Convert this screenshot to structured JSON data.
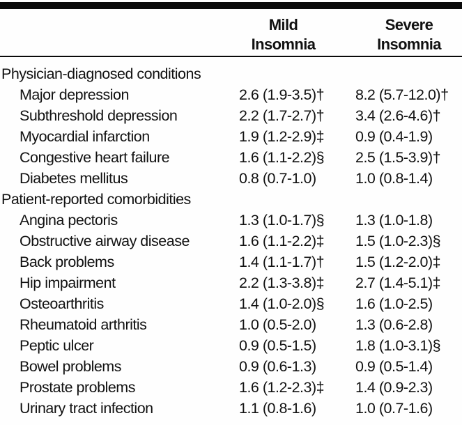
{
  "table": {
    "header": {
      "mild": "Mild\nInsomnia",
      "severe": "Severe\nInsomnia"
    },
    "colors": {
      "rule": "#0a0a0a",
      "text": "#111111",
      "background": "#fefefe"
    },
    "value_format": "odds ratio (95% CI)",
    "footnote_symbols": [
      "†",
      "‡",
      "§"
    ],
    "rows": [
      {
        "type": "section",
        "condition": "Physician-diagnosed conditions",
        "mild": "",
        "severe": ""
      },
      {
        "type": "item",
        "condition": "Major depression",
        "mild": "2.6 (1.9-3.5)†",
        "severe": "8.2 (5.7-12.0)†"
      },
      {
        "type": "item",
        "condition": "Subthreshold depression",
        "mild": "2.2 (1.7-2.7)†",
        "severe": "3.4 (2.6-4.6)†"
      },
      {
        "type": "item",
        "condition": "Myocardial infarction",
        "mild": "1.9 (1.2-2.9)‡",
        "severe": "0.9 (0.4-1.9)"
      },
      {
        "type": "item",
        "condition": "Congestive heart failure",
        "mild": "1.6 (1.1-2.2)§",
        "severe": "2.5 (1.5-3.9)†"
      },
      {
        "type": "item",
        "condition": "Diabetes mellitus",
        "mild": "0.8 (0.7-1.0)",
        "severe": "1.0 (0.8-1.4)"
      },
      {
        "type": "section",
        "condition": "Patient-reported comorbidities",
        "mild": "",
        "severe": ""
      },
      {
        "type": "item",
        "condition": "Angina pectoris",
        "mild": "1.3 (1.0-1.7)§",
        "severe": "1.3 (1.0-1.8)"
      },
      {
        "type": "item",
        "condition": "Obstructive airway disease",
        "mild": "1.6 (1.1-2.2)‡",
        "severe": "1.5 (1.0-2.3)§"
      },
      {
        "type": "item",
        "condition": "Back problems",
        "mild": "1.4 (1.1-1.7)†",
        "severe": "1.5 (1.2-2.0)‡"
      },
      {
        "type": "item",
        "condition": "Hip impairment",
        "mild": "2.2 (1.3-3.8)‡",
        "severe": "2.7 (1.4-5.1)‡"
      },
      {
        "type": "item",
        "condition": "Osteoarthritis",
        "mild": "1.4 (1.0-2.0)§",
        "severe": "1.6 (1.0-2.5)"
      },
      {
        "type": "item",
        "condition": "Rheumatoid arthritis",
        "mild": "1.0 (0.5-2.0)",
        "severe": "1.3 (0.6-2.8)"
      },
      {
        "type": "item",
        "condition": "Peptic ulcer",
        "mild": "0.9 (0.5-1.5)",
        "severe": "1.8 (1.0-3.1)§"
      },
      {
        "type": "item",
        "condition": "Bowel problems",
        "mild": "0.9 (0.6-1.3)",
        "severe": "0.9 (0.5-1.4)"
      },
      {
        "type": "item",
        "condition": "Prostate problems",
        "mild": "1.6 (1.2-2.3)‡",
        "severe": "1.4 (0.9-2.3)"
      },
      {
        "type": "item",
        "condition": "Urinary tract infection",
        "mild": "1.1 (0.8-1.6)",
        "severe": "1.0 (0.7-1.6)"
      }
    ]
  }
}
